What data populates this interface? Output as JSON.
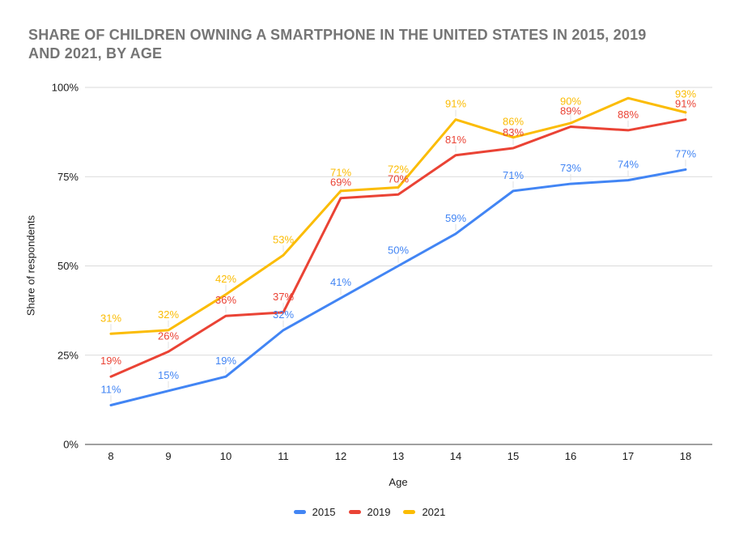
{
  "title": {
    "line1": "SHARE OF CHILDREN OWNING A SMARTPHONE IN THE UNITED STATES IN 2015, 2019",
    "line2": "AND 2021, BY AGE"
  },
  "chart_data": {
    "type": "line",
    "title": "SHARE OF CHILDREN OWNING A SMARTPHONE IN THE UNITED STATES IN 2015, 2019 AND 2021, BY AGE",
    "xlabel": "Age",
    "ylabel": "Share of respondents",
    "x": [
      8,
      9,
      10,
      11,
      12,
      13,
      14,
      15,
      16,
      17,
      18
    ],
    "ylim": [
      0,
      100
    ],
    "yticks": [
      {
        "value": 0,
        "label": "0%"
      },
      {
        "value": 25,
        "label": "25%"
      },
      {
        "value": 50,
        "label": "50%"
      },
      {
        "value": 75,
        "label": "75%"
      },
      {
        "value": 100,
        "label": "100%"
      }
    ],
    "grid": true,
    "legend_position": "bottom",
    "series": [
      {
        "name": "2015",
        "color": "#4285F4",
        "values": [
          11,
          15,
          19,
          32,
          41,
          50,
          59,
          71,
          73,
          74,
          77
        ],
        "labels": [
          "11%",
          "15%",
          "19%",
          "32%",
          "41%",
          "50%",
          "59%",
          "71%",
          "73%",
          "74%",
          "77%"
        ]
      },
      {
        "name": "2019",
        "color": "#EA4335",
        "values": [
          19,
          26,
          36,
          37,
          69,
          70,
          81,
          83,
          89,
          88,
          91
        ],
        "labels": [
          "19%",
          "26%",
          "36%",
          "37%",
          "69%",
          "70%",
          "81%",
          "83%",
          "89%",
          "88%",
          "91%"
        ]
      },
      {
        "name": "2021",
        "color": "#FBBC04",
        "values": [
          31,
          32,
          42,
          53,
          71,
          72,
          91,
          86,
          90,
          97,
          93
        ],
        "labels": [
          "31%",
          "32%",
          "42%",
          "53%",
          "71%",
          "72%",
          "91%",
          "86%",
          "90%",
          "",
          "93%"
        ]
      }
    ]
  },
  "styles": {
    "grid_color": "#dadada",
    "axis_line_color": "#424242",
    "tick_color": "#1a1a1a",
    "title_color": "#757575",
    "leader_color": "#e0e0e0"
  }
}
